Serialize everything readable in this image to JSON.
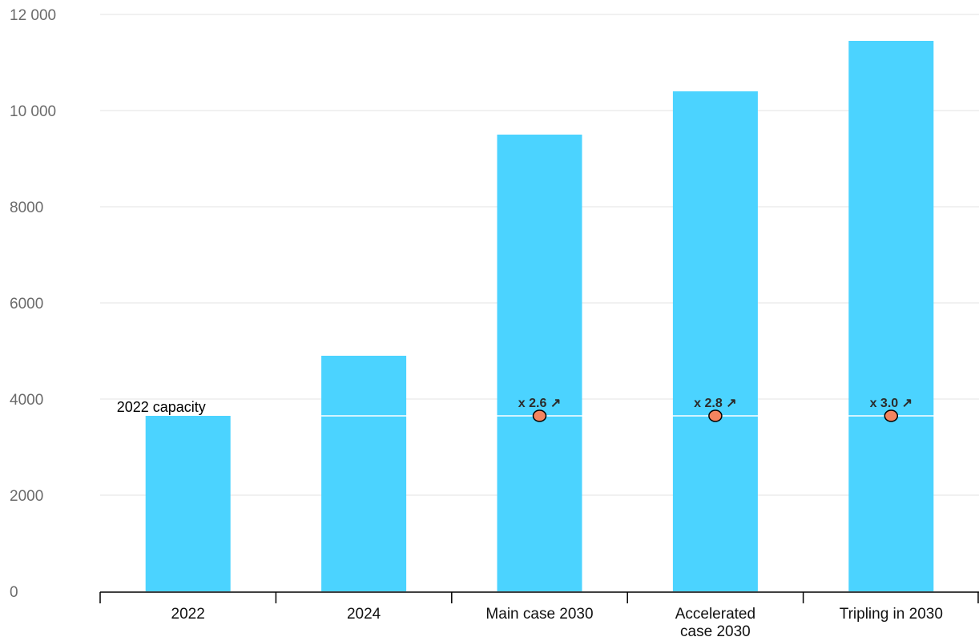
{
  "chart_data": {
    "type": "bar",
    "title": "",
    "xlabel": "",
    "ylabel": "",
    "categories": [
      [
        "2022"
      ],
      [
        "2024"
      ],
      [
        "Main case 2030"
      ],
      [
        "Accelerated",
        "case 2030"
      ],
      [
        "Tripling in 2030"
      ]
    ],
    "values": [
      3650,
      4900,
      9500,
      10400,
      11450
    ],
    "ylim": [
      0,
      12000
    ],
    "yticks": [
      0,
      2000,
      4000,
      6000,
      8000,
      10000,
      12000
    ],
    "ytick_labels": [
      "0",
      "2000",
      "4000",
      "6000",
      "8000",
      "10 000",
      "12 000"
    ],
    "reference": {
      "label": "2022 capacity",
      "value": 3650
    },
    "multipliers": [
      {
        "category_index": 2,
        "label": "x 2.6 ↗"
      },
      {
        "category_index": 3,
        "label": "x 2.8 ↗"
      },
      {
        "category_index": 4,
        "label": "x 3.0 ↗"
      }
    ],
    "grid": true,
    "legend": "none"
  },
  "colors": {
    "bar": "#4bd3ff",
    "marker": "#f4845f",
    "grid": "#e3e3e3",
    "axis": "#000000",
    "reference_line": "#ffffff"
  }
}
